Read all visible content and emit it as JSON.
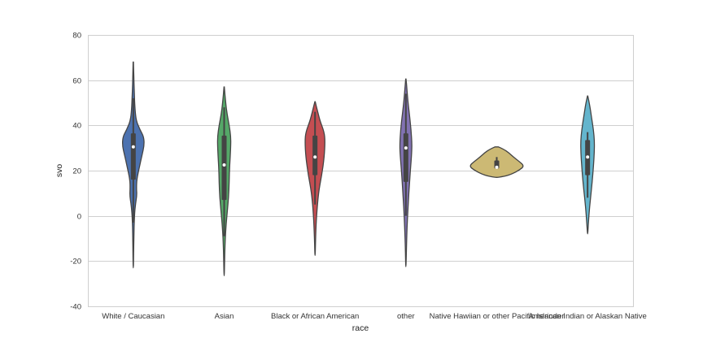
{
  "chart_data": {
    "type": "violin",
    "title": "",
    "xlabel": "race",
    "ylabel": "svo",
    "ylim": [
      -40,
      80
    ],
    "yticks": [
      -40,
      -20,
      0,
      20,
      40,
      60,
      80
    ],
    "grid": true,
    "categories": [
      "White / Caucasian",
      "Asian",
      "Black or African American",
      "other",
      "Native Hawiian or other Pacific Islander",
      "American Indian or Alaskan Native"
    ],
    "series": [
      {
        "category": "White / Caucasian",
        "color": "#4c72b0",
        "min": -23,
        "q1": 16,
        "median": 30.5,
        "q3": 36.5,
        "max": 68,
        "whisker_low": -3,
        "whisker_high": 52,
        "density": [
          [
            -23,
            0.2
          ],
          [
            -10,
            0.6
          ],
          [
            0,
            1.3
          ],
          [
            5,
            2.6
          ],
          [
            9,
            4.2
          ],
          [
            12,
            3.8
          ],
          [
            16,
            4.0
          ],
          [
            22,
            7.5
          ],
          [
            27,
            10.5
          ],
          [
            31,
            13
          ],
          [
            35,
            12.5
          ],
          [
            38,
            8
          ],
          [
            42,
            3.5
          ],
          [
            47,
            2
          ],
          [
            55,
            1.1
          ],
          [
            62,
            0.6
          ],
          [
            68,
            0.2
          ]
        ]
      },
      {
        "category": "Asian",
        "color": "#55a868",
        "min": -26.5,
        "q1": 7,
        "median": 22.5,
        "q3": 35.5,
        "max": 57,
        "whisker_low": -9,
        "whisker_high": 48,
        "density": [
          [
            -26.5,
            0.2
          ],
          [
            -15,
            0.8
          ],
          [
            -5,
            2
          ],
          [
            2,
            3.8
          ],
          [
            8,
            5.2
          ],
          [
            15,
            6
          ],
          [
            22,
            6.5
          ],
          [
            30,
            7.8
          ],
          [
            35,
            8
          ],
          [
            40,
            6
          ],
          [
            45,
            3.5
          ],
          [
            50,
            1.8
          ],
          [
            57,
            0.2
          ]
        ]
      },
      {
        "category": "Black or African American",
        "color": "#c44e52",
        "min": -17.5,
        "q1": 18,
        "median": 26,
        "q3": 35.5,
        "max": 50.5,
        "whisker_low": 5,
        "whisker_high": 46,
        "density": [
          [
            -17.5,
            0.2
          ],
          [
            -8,
            0.8
          ],
          [
            0,
            1.8
          ],
          [
            10,
            4
          ],
          [
            18,
            8
          ],
          [
            26,
            11
          ],
          [
            33,
            12
          ],
          [
            37,
            11
          ],
          [
            42,
            6
          ],
          [
            46,
            3.2
          ],
          [
            50.5,
            0.2
          ]
        ]
      },
      {
        "category": "other",
        "color": "#8172b2",
        "min": -22.5,
        "q1": 15,
        "median": 30,
        "q3": 36.5,
        "max": 60.5,
        "whisker_low": 0,
        "whisker_high": 54,
        "density": [
          [
            -22.5,
            0.2
          ],
          [
            -10,
            0.9
          ],
          [
            0,
            2
          ],
          [
            10,
            3.5
          ],
          [
            20,
            5.3
          ],
          [
            28,
            7
          ],
          [
            32,
            7.2
          ],
          [
            38,
            6.2
          ],
          [
            44,
            4.5
          ],
          [
            50,
            2.6
          ],
          [
            56,
            1.2
          ],
          [
            60.5,
            0.2
          ]
        ]
      },
      {
        "category": "Native Hawiian or other Pacific Islander",
        "color": "#ccb974",
        "min": 17,
        "q1": 21,
        "median": 21.5,
        "q3": 24.5,
        "max": 30.5,
        "whisker_low": 21,
        "whisker_high": 26,
        "density": [
          [
            17,
            2
          ],
          [
            18,
            15
          ],
          [
            20,
            26
          ],
          [
            22,
            33
          ],
          [
            24,
            27
          ],
          [
            26,
            20
          ],
          [
            28,
            14
          ],
          [
            29.5,
            8
          ],
          [
            30.5,
            2
          ]
        ]
      },
      {
        "category": "American Indian or Alaskan Native",
        "color": "#64b5cd",
        "min": -8,
        "q1": 18,
        "median": 26,
        "q3": 33.5,
        "max": 53,
        "whisker_low": 8,
        "whisker_high": 37,
        "density": [
          [
            -8,
            0.2
          ],
          [
            0,
            1.5
          ],
          [
            8,
            3.5
          ],
          [
            15,
            5.5
          ],
          [
            22,
            7
          ],
          [
            28,
            8
          ],
          [
            33,
            8.2
          ],
          [
            38,
            7
          ],
          [
            44,
            4.5
          ],
          [
            49,
            2.5
          ],
          [
            53,
            0.2
          ]
        ]
      }
    ]
  }
}
